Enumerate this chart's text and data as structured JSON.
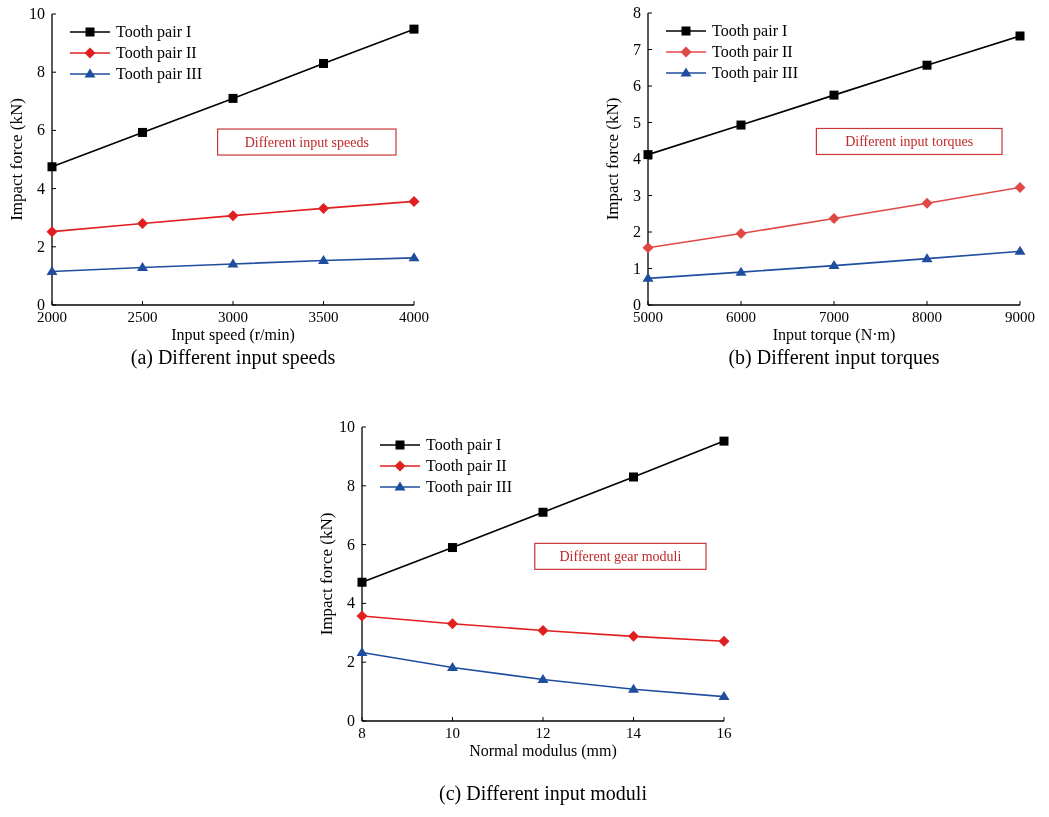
{
  "chart_data": [
    {
      "type": "line",
      "title": "(a) Different input speeds",
      "xlabel": "Input speed (r/min)",
      "ylabel": "Impact force (kN)",
      "annotations": [
        "Different input speeds"
      ],
      "x": [
        2000,
        2500,
        3000,
        3500,
        4000
      ],
      "xlim": [
        2000,
        4000
      ],
      "xticks": [
        2000,
        2500,
        3000,
        3500,
        4000
      ],
      "ylim": [
        0,
        10
      ],
      "yticks": [
        0,
        2,
        4,
        6,
        8,
        10
      ],
      "legend": "top left",
      "grid": false,
      "series": [
        {
          "name": "Tooth pair I",
          "color": "#000000",
          "marker": "square",
          "values": [
            4.75,
            5.93,
            7.1,
            8.3,
            9.48
          ]
        },
        {
          "name": "Tooth pair II",
          "color": "#e02020",
          "marker": "diamond",
          "values": [
            2.52,
            2.8,
            3.07,
            3.32,
            3.56
          ]
        },
        {
          "name": "Tooth pair III",
          "color": "#1f4e9f",
          "marker": "triangle",
          "values": [
            1.15,
            1.29,
            1.41,
            1.53,
            1.62
          ]
        }
      ]
    },
    {
      "type": "line",
      "title": "(b) Different input torques",
      "xlabel": "Input torque (N·m)",
      "ylabel": "Impact force (kN)",
      "annotations": [
        "Different input torques"
      ],
      "x": [
        5000,
        6000,
        7000,
        8000,
        9000
      ],
      "xlim": [
        5000,
        9000
      ],
      "xticks": [
        5000,
        6000,
        7000,
        8000,
        9000
      ],
      "ylim": [
        0,
        8
      ],
      "yticks": [
        0,
        1,
        2,
        3,
        4,
        5,
        6,
        7,
        8
      ],
      "legend": "top left",
      "grid": false,
      "series": [
        {
          "name": "Tooth pair I",
          "color": "#000000",
          "marker": "square",
          "values": [
            4.12,
            4.93,
            5.75,
            6.57,
            7.37
          ]
        },
        {
          "name": "Tooth pair II",
          "color": "#e04848",
          "marker": "diamond",
          "values": [
            1.57,
            1.96,
            2.37,
            2.79,
            3.22
          ]
        },
        {
          "name": "Tooth pair III",
          "color": "#1f4e9f",
          "marker": "triangle",
          "values": [
            0.73,
            0.9,
            1.08,
            1.27,
            1.47
          ]
        }
      ]
    },
    {
      "type": "line",
      "title": "(c) Different input moduli",
      "xlabel": "Normal modulus (mm)",
      "ylabel": "Impact force (kN)",
      "annotations": [
        "Different gear moduli"
      ],
      "x": [
        8,
        10,
        12,
        14,
        16
      ],
      "xlim": [
        8,
        16
      ],
      "xticks": [
        8,
        10,
        12,
        14,
        16
      ],
      "ylim": [
        0,
        10
      ],
      "yticks": [
        0,
        2,
        4,
        6,
        8,
        10
      ],
      "legend": "top left",
      "grid": false,
      "series": [
        {
          "name": "Tooth pair I",
          "color": "#000000",
          "marker": "square",
          "values": [
            4.72,
            5.9,
            7.1,
            8.3,
            9.52
          ]
        },
        {
          "name": "Tooth pair II",
          "color": "#e02020",
          "marker": "diamond",
          "values": [
            3.57,
            3.31,
            3.08,
            2.88,
            2.71
          ]
        },
        {
          "name": "Tooth pair III",
          "color": "#1f4e9f",
          "marker": "triangle",
          "values": [
            2.33,
            1.82,
            1.41,
            1.08,
            0.83
          ]
        }
      ]
    }
  ]
}
